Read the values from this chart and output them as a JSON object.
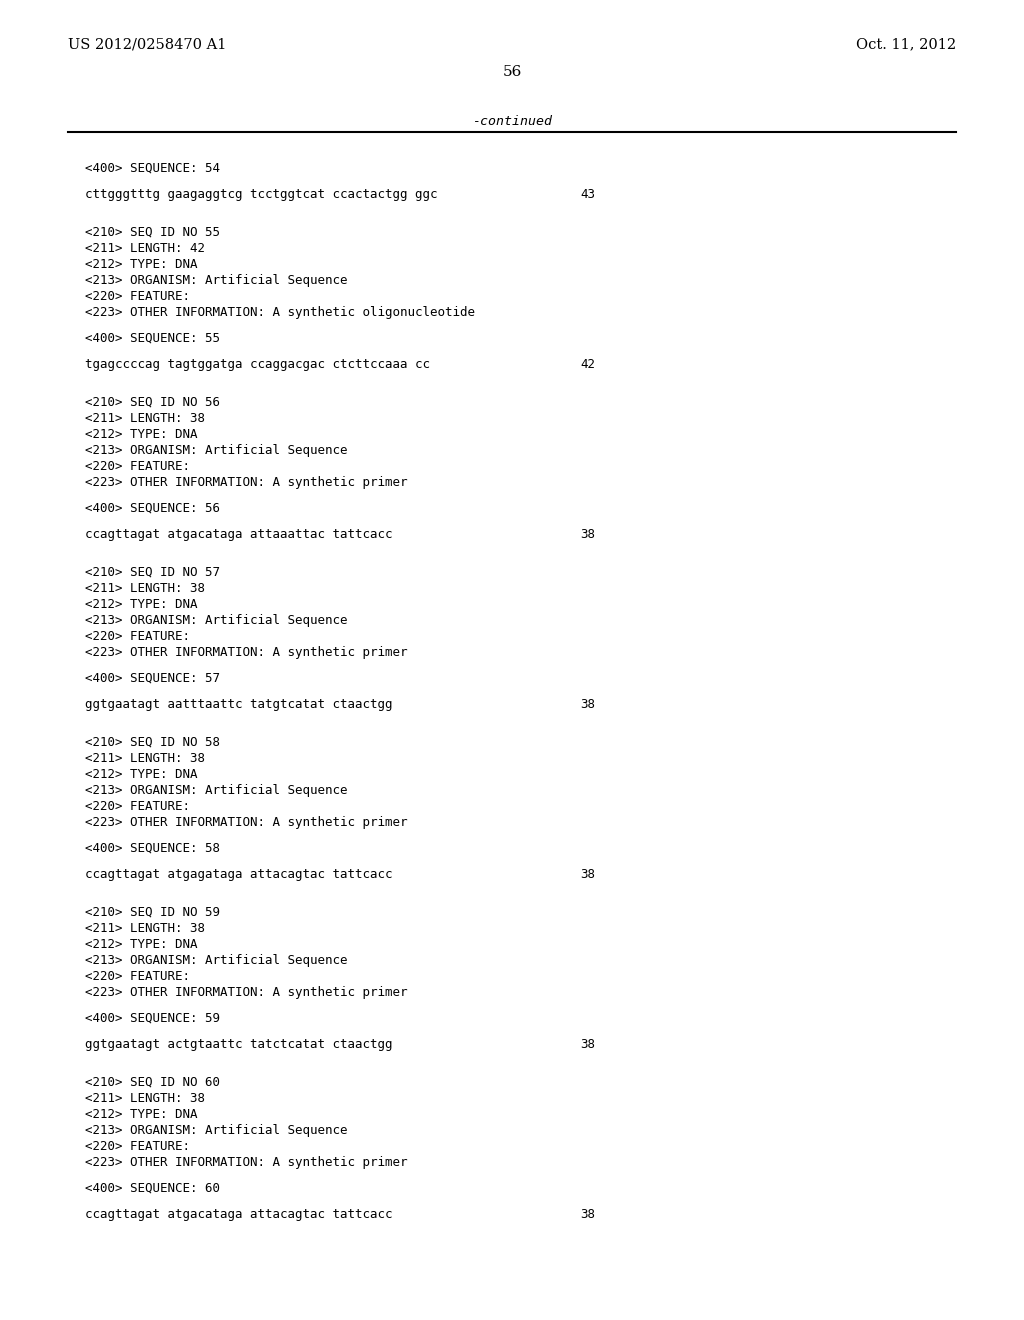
{
  "background_color": "#ffffff",
  "top_left_text": "US 2012/0258470 A1",
  "top_right_text": "Oct. 11, 2012",
  "page_number": "56",
  "continued_text": "-continued",
  "content": [
    {
      "type": "seq_header",
      "text": "<400> SEQUENCE: 54"
    },
    {
      "type": "seq_gap"
    },
    {
      "type": "sequence",
      "text": "cttgggtttg gaagaggtcg tcctggtcat ccactactgg ggc",
      "number": "43"
    },
    {
      "type": "large_gap"
    },
    {
      "type": "meta",
      "lines": [
        "<210> SEQ ID NO 55",
        "<211> LENGTH: 42",
        "<212> TYPE: DNA",
        "<213> ORGANISM: Artificial Sequence",
        "<220> FEATURE:",
        "<223> OTHER INFORMATION: A synthetic oligonucleotide"
      ]
    },
    {
      "type": "seq_gap"
    },
    {
      "type": "seq_header",
      "text": "<400> SEQUENCE: 55"
    },
    {
      "type": "seq_gap"
    },
    {
      "type": "sequence",
      "text": "tgagccccag tagtggatga ccaggacgac ctcttccaaa cc",
      "number": "42"
    },
    {
      "type": "large_gap"
    },
    {
      "type": "meta",
      "lines": [
        "<210> SEQ ID NO 56",
        "<211> LENGTH: 38",
        "<212> TYPE: DNA",
        "<213> ORGANISM: Artificial Sequence",
        "<220> FEATURE:",
        "<223> OTHER INFORMATION: A synthetic primer"
      ]
    },
    {
      "type": "seq_gap"
    },
    {
      "type": "seq_header",
      "text": "<400> SEQUENCE: 56"
    },
    {
      "type": "seq_gap"
    },
    {
      "type": "sequence",
      "text": "ccagttagat atgacataga attaaattac tattcacc",
      "number": "38"
    },
    {
      "type": "large_gap"
    },
    {
      "type": "meta",
      "lines": [
        "<210> SEQ ID NO 57",
        "<211> LENGTH: 38",
        "<212> TYPE: DNA",
        "<213> ORGANISM: Artificial Sequence",
        "<220> FEATURE:",
        "<223> OTHER INFORMATION: A synthetic primer"
      ]
    },
    {
      "type": "seq_gap"
    },
    {
      "type": "seq_header",
      "text": "<400> SEQUENCE: 57"
    },
    {
      "type": "seq_gap"
    },
    {
      "type": "sequence",
      "text": "ggtgaatagt aatttaattc tatgtcatat ctaactgg",
      "number": "38"
    },
    {
      "type": "large_gap"
    },
    {
      "type": "meta",
      "lines": [
        "<210> SEQ ID NO 58",
        "<211> LENGTH: 38",
        "<212> TYPE: DNA",
        "<213> ORGANISM: Artificial Sequence",
        "<220> FEATURE:",
        "<223> OTHER INFORMATION: A synthetic primer"
      ]
    },
    {
      "type": "seq_gap"
    },
    {
      "type": "seq_header",
      "text": "<400> SEQUENCE: 58"
    },
    {
      "type": "seq_gap"
    },
    {
      "type": "sequence",
      "text": "ccagttagat atgagataga attacagtac tattcacc",
      "number": "38"
    },
    {
      "type": "large_gap"
    },
    {
      "type": "meta",
      "lines": [
        "<210> SEQ ID NO 59",
        "<211> LENGTH: 38",
        "<212> TYPE: DNA",
        "<213> ORGANISM: Artificial Sequence",
        "<220> FEATURE:",
        "<223> OTHER INFORMATION: A synthetic primer"
      ]
    },
    {
      "type": "seq_gap"
    },
    {
      "type": "seq_header",
      "text": "<400> SEQUENCE: 59"
    },
    {
      "type": "seq_gap"
    },
    {
      "type": "sequence",
      "text": "ggtgaatagt actgtaattc tatctcatat ctaactgg",
      "number": "38"
    },
    {
      "type": "large_gap"
    },
    {
      "type": "meta",
      "lines": [
        "<210> SEQ ID NO 60",
        "<211> LENGTH: 38",
        "<212> TYPE: DNA",
        "<213> ORGANISM: Artificial Sequence",
        "<220> FEATURE:",
        "<223> OTHER INFORMATION: A synthetic primer"
      ]
    },
    {
      "type": "seq_gap"
    },
    {
      "type": "seq_header",
      "text": "<400> SEQUENCE: 60"
    },
    {
      "type": "seq_gap"
    },
    {
      "type": "sequence",
      "text": "ccagttagat atgacataga attacagtac tattcacc",
      "number": "38"
    }
  ]
}
